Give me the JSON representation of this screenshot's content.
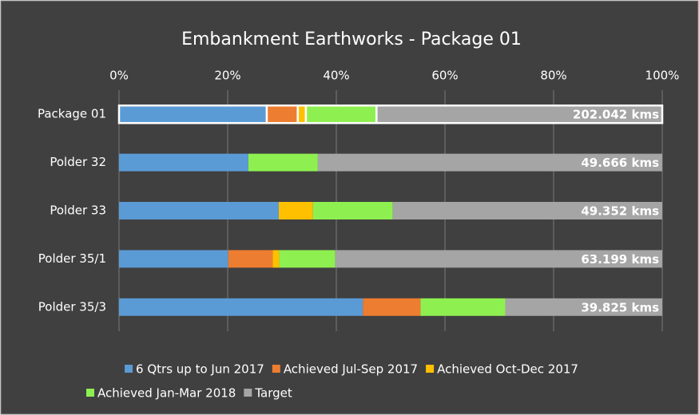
{
  "chart_data": {
    "type": "stacked-bar-horizontal",
    "title": "Embankment Earthworks - Package 01",
    "categories": [
      "Package 01",
      "Polder 32",
      "Polder 33",
      "Polder 35/1",
      "Polder 35/3"
    ],
    "series": [
      {
        "name": "6 Qtrs up to Jun 2017",
        "color": "#5b9bd5",
        "values": [
          27.2,
          23.8,
          29.4,
          20.1,
          44.9
        ]
      },
      {
        "name": "Achieved Jul-Sep 2017",
        "color": "#ed7d31",
        "values": [
          5.7,
          0,
          0,
          8.2,
          10.6
        ]
      },
      {
        "name": "Achieved Oct-Dec 2017",
        "color": "#ffc000",
        "values": [
          1.5,
          0,
          6.3,
          1.2,
          0
        ]
      },
      {
        "name": "Achieved Jan-Mar 2018",
        "color": "#8ef050",
        "values": [
          13.0,
          12.8,
          14.7,
          10.3,
          15.6
        ]
      },
      {
        "name": "Target",
        "color": "#a5a5a5",
        "values": [
          52.6,
          63.4,
          49.6,
          60.2,
          28.9
        ]
      }
    ],
    "total_labels": [
      "202.042 kms",
      "49.666 kms",
      "49.352 kms",
      "63.199 kms",
      "39.825 kms"
    ],
    "xlim": [
      0,
      100
    ],
    "xticks": [
      {
        "value": 0,
        "label": "0%"
      },
      {
        "value": 20,
        "label": "20%"
      },
      {
        "value": 40,
        "label": "40%"
      },
      {
        "value": 60,
        "label": "60%"
      },
      {
        "value": 80,
        "label": "80%"
      },
      {
        "value": 100,
        "label": "100%"
      }
    ],
    "grid": true,
    "highlight": 0,
    "legend": "bottom"
  }
}
